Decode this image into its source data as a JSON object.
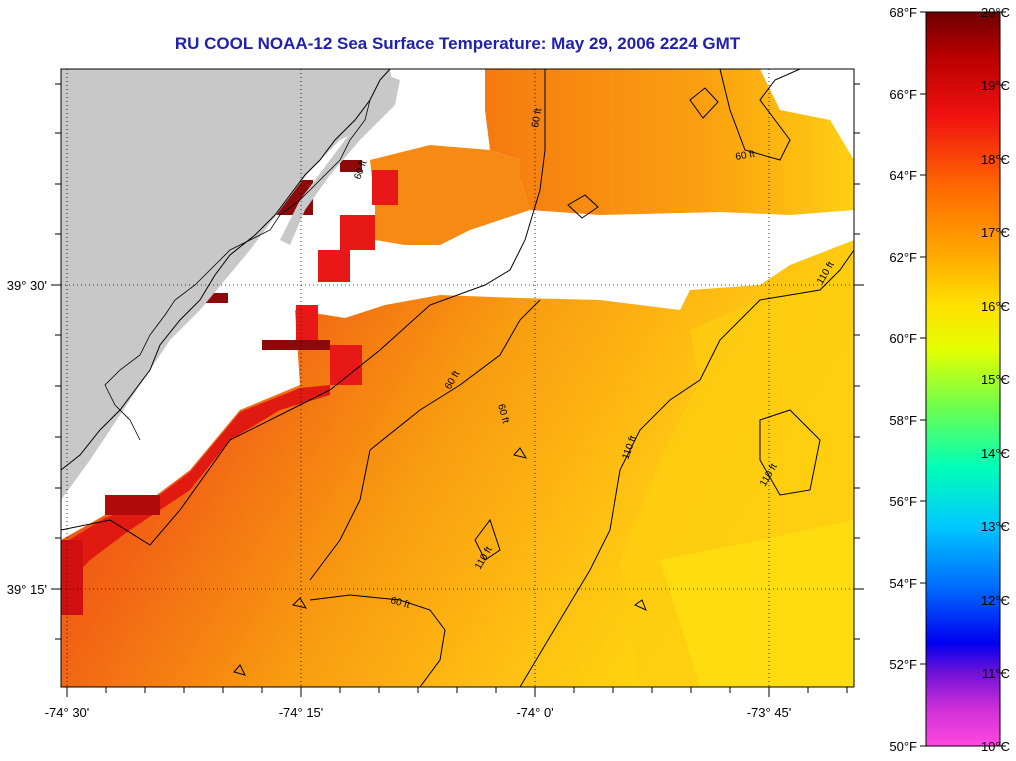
{
  "title": "RU COOL  NOAA-12  Sea Surface Temperature:  May 29, 2006 2224 GMT",
  "map": {
    "lon_labels": [
      "-74° 30'",
      "-74° 15'",
      "-74° 0'",
      "-73° 45'"
    ],
    "lat_labels": [
      "39° 30'",
      "39° 15'"
    ],
    "contour_labels": [
      "60 ft",
      "60 ft",
      "60 ft",
      "60 ft",
      "60 ft",
      "110 ft",
      "110 ft",
      "110 ft",
      "110 ft",
      "60 ft"
    ],
    "colors": {
      "land": "#c8c8c8",
      "no_data": "#ffffff",
      "frame": "#000000",
      "title": "#1f1fb0"
    }
  },
  "colorbar": {
    "fahrenheit_labels": [
      "68°F",
      "66°F",
      "64°F",
      "62°F",
      "60°F",
      "58°F",
      "56°F",
      "54°F",
      "52°F",
      "50°F"
    ],
    "celsius_labels": [
      "20°C",
      "19°C",
      "18°C",
      "17°C",
      "16°C",
      "15°C",
      "14°C",
      "13°C",
      "12°C",
      "11°C",
      "10°C"
    ],
    "gradient_colors": [
      "#7a0000",
      "#cc0000",
      "#ff2a00",
      "#ff7a00",
      "#ffb000",
      "#ffe000",
      "#e8ff00",
      "#80ff40",
      "#00ffb0",
      "#00d8ff",
      "#0080ff",
      "#0000ff",
      "#6000d0",
      "#b000d0",
      "#ff40e0"
    ]
  }
}
